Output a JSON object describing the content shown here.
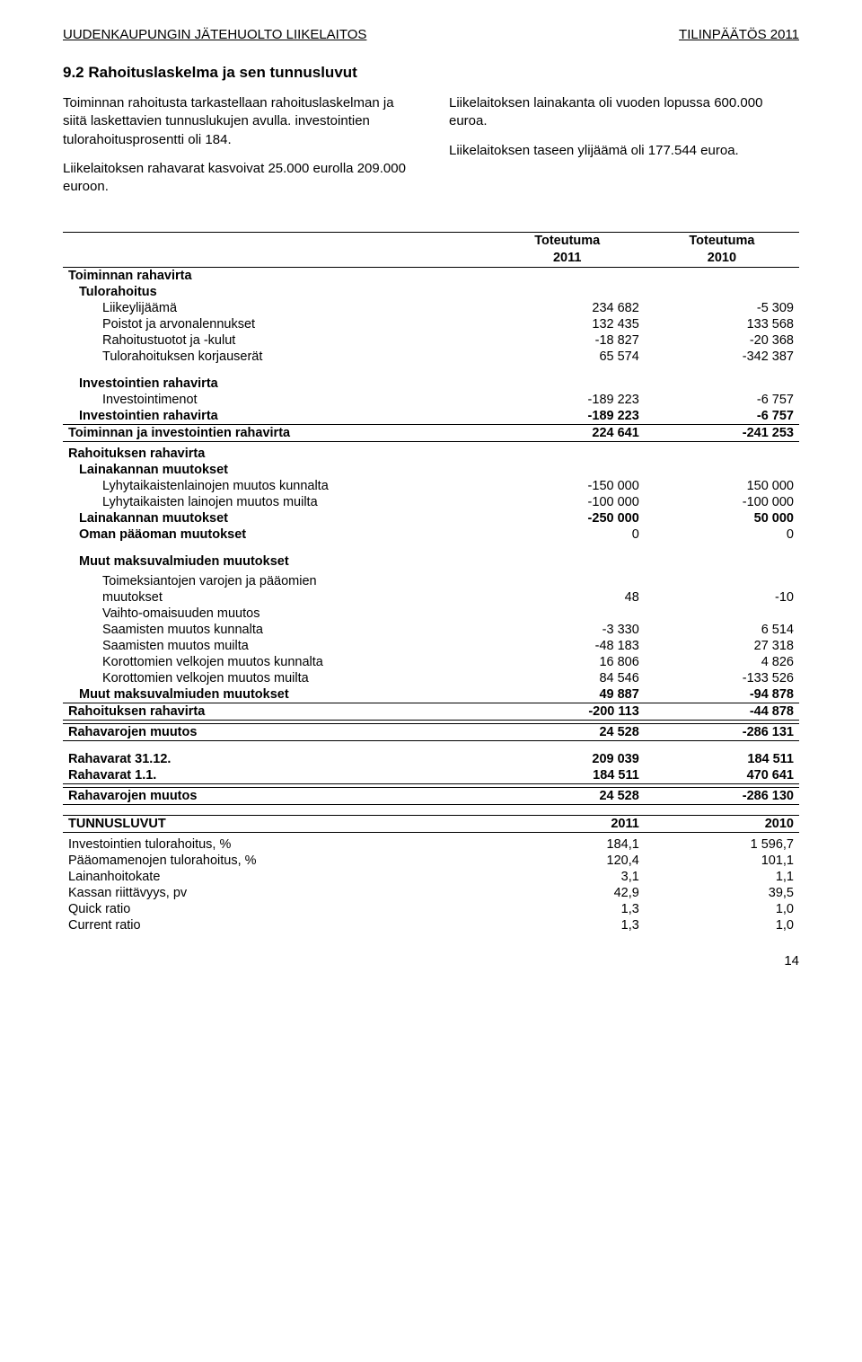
{
  "header": {
    "left": "UUDENKAUPUNGIN JÄTEHUOLTO LIIKELAITOS",
    "right": "TILINPÄÄTÖS 2011"
  },
  "section_title": "9.2 Rahoituslaskelma ja sen tunnusluvut",
  "intro": {
    "left_p1": "Toiminnan rahoitusta tarkastellaan rahoituslaskelman ja siitä laskettavien tunnuslukujen avulla. investointien tulorahoitusprosentti oli 184.",
    "left_p2": "Liikelaitoksen rahavarat kasvoivat 25.000 eurolla 209.000 euroon.",
    "right_p1": "Liikelaitoksen lainakanta oli vuoden lopussa 600.000 euroa.",
    "right_p2": "Liikelaitoksen taseen ylijäämä oli 177.544 euroa."
  },
  "table_headers": {
    "col1": "Toteutuma",
    "col1b": "2011",
    "col2": "Toteutuma",
    "col2b": "2010"
  },
  "rows": {
    "toiminnan_rahavirta": "Toiminnan rahavirta",
    "tulorahoitus": "Tulorahoitus",
    "liikeylijaama": {
      "label": "Liikeylijäämä",
      "v1": "234 682",
      "v2": "-5 309"
    },
    "poistot": {
      "label": "Poistot ja arvonalennukset",
      "v1": "132 435",
      "v2": "133 568"
    },
    "rahoitustuotot": {
      "label": "Rahoitustuotot ja -kulut",
      "v1": "-18 827",
      "v2": "-20 368"
    },
    "tulorahoituksen_korj": {
      "label": "Tulorahoituksen korjauserät",
      "v1": "65 574",
      "v2": "-342 387"
    },
    "inv_rahavirta_hdr": "Investointien rahavirta",
    "investointimenot": {
      "label": "Investointimenot",
      "v1": "-189 223",
      "v2": "-6 757"
    },
    "inv_rahavirta_sum": {
      "label": "Investointien rahavirta",
      "v1": "-189 223",
      "v2": "-6 757"
    },
    "toim_inv_rahavirta": {
      "label": "Toiminnan ja investointien rahavirta",
      "v1": "224 641",
      "v2": "-241 253"
    },
    "rahoituksen_rahavirta_hdr": "Rahoituksen rahavirta",
    "lainakannan_hdr": "Lainakannan muutokset",
    "lyhyt_kunnalta": {
      "label": "Lyhytaikaistenlainojen muutos kunnalta",
      "v1": "-150 000",
      "v2": "150 000"
    },
    "lyhyt_muilta": {
      "label": "Lyhytaikaisten lainojen muutos muilta",
      "v1": "-100 000",
      "v2": "-100 000"
    },
    "lainakannan_sum": {
      "label": "Lainakannan muutokset",
      "v1": "-250 000",
      "v2": "50 000"
    },
    "oman_paaoman": {
      "label": "Oman pääoman muutokset",
      "v1": "0",
      "v2": "0"
    },
    "muut_maksuvalm_hdr": "Muut maksuvalmiuden muutokset",
    "toimeksiantojen_l1": "Toimeksiantojen varojen ja pääomien",
    "toimeksiantojen": {
      "label": "muutokset",
      "v1": "48",
      "v2": "-10"
    },
    "vaihto": "Vaihto-omaisuuden muutos",
    "saam_kunnalta": {
      "label": "Saamisten muutos kunnalta",
      "v1": "-3 330",
      "v2": "6 514"
    },
    "saam_muilta": {
      "label": "Saamisten muutos muilta",
      "v1": "-48 183",
      "v2": "27 318"
    },
    "korot_kunnalta": {
      "label": "Korottomien velkojen muutos kunnalta",
      "v1": "16 806",
      "v2": "4 826"
    },
    "korot_muilta": {
      "label": "Korottomien velkojen muutos muilta",
      "v1": "84 546",
      "v2": "-133 526"
    },
    "muut_maksuvalm_sum": {
      "label": "Muut maksuvalmiuden muutokset",
      "v1": "49 887",
      "v2": "-94 878"
    },
    "rahoituksen_rahavirta": {
      "label": "Rahoituksen rahavirta",
      "v1": "-200 113",
      "v2": "-44 878"
    },
    "rahavarojen_muutos": {
      "label": "Rahavarojen muutos",
      "v1": "24 528",
      "v2": "-286 131"
    },
    "rahavarat_3112": {
      "label": "Rahavarat 31.12.",
      "v1": "209 039",
      "v2": "184 511"
    },
    "rahavarat_11": {
      "label": "Rahavarat 1.1.",
      "v1": "184 511",
      "v2": "470 641"
    },
    "rahavarojen_muutos2": {
      "label": "Rahavarojen muutos",
      "v1": "24 528",
      "v2": "-286 130"
    }
  },
  "tunnus": {
    "header": {
      "label": "TUNNUSLUVUT",
      "v1": "2011",
      "v2": "2010"
    },
    "inv_tulorahoitus": {
      "label": "Investointien tulorahoitus, %",
      "v1": "184,1",
      "v2": "1 596,7"
    },
    "paaomamenojen": {
      "label": "Pääomamenojen tulorahoitus, %",
      "v1": "120,4",
      "v2": "101,1"
    },
    "lainanhoitokate": {
      "label": "Lainanhoitokate",
      "v1": "3,1",
      "v2": "1,1"
    },
    "kassan": {
      "label": "Kassan riittävyys, pv",
      "v1": "42,9",
      "v2": "39,5"
    },
    "quick": {
      "label": "Quick ratio",
      "v1": "1,3",
      "v2": "1,0"
    },
    "current": {
      "label": "Current ratio",
      "v1": "1,3",
      "v2": "1,0"
    }
  },
  "page_number": "14"
}
